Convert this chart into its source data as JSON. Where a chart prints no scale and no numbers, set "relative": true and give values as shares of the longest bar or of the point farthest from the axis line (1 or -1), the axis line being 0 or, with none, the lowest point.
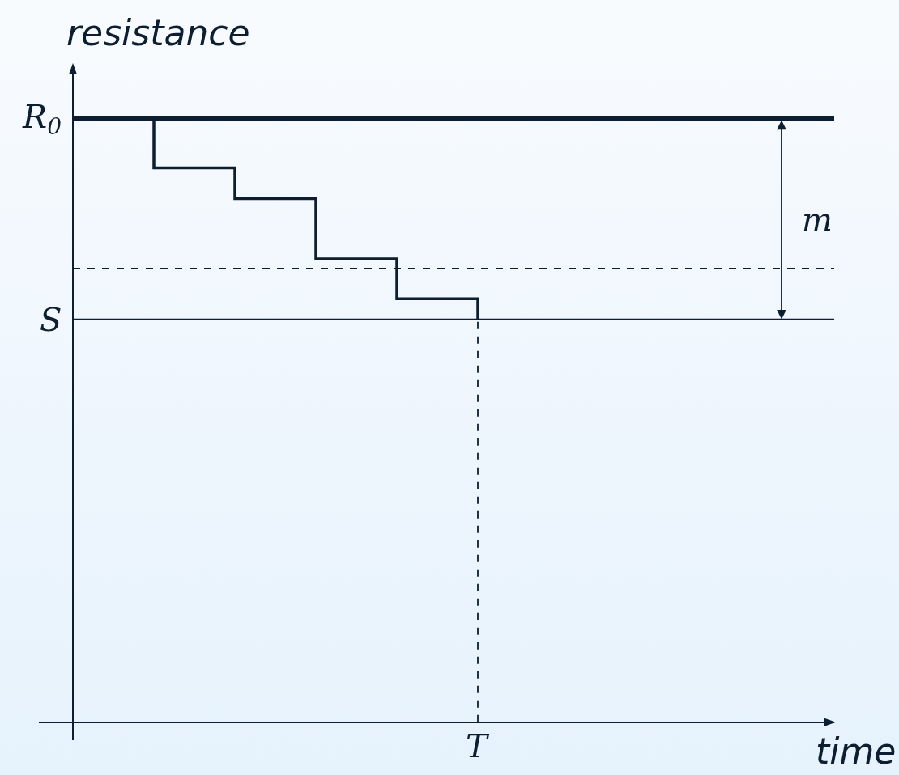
{
  "chart_data": {
    "type": "step",
    "relative": true,
    "xlabel": "time",
    "ylabel": "resistance",
    "categories": [
      null,
      null,
      null,
      null,
      null,
      null,
      null,
      null,
      null,
      null
    ],
    "series": [
      {
        "color": "#0d1e30",
        "values": [
          1,
          0.919,
          0.868,
          0.768,
          0.702,
          0.668,
          null,
          null,
          null,
          null
        ]
      }
    ],
    "ref_lines": [
      {
        "axis": "y",
        "value": 1,
        "label": "R$_{0}$",
        "color": "#0d1e30",
        "line_style": "solid"
      },
      {
        "axis": "y",
        "value": 0.668,
        "label": "S",
        "color": "#0d1e30",
        "line_style": "solid"
      },
      {
        "axis": "y",
        "value": 0.752,
        "color": "#0d1e30",
        "line_style": "dashed"
      }
    ],
    "annotations": [
      "T",
      "m"
    ],
    "grid": false,
    "marker": "none",
    "line_style": "solid"
  }
}
